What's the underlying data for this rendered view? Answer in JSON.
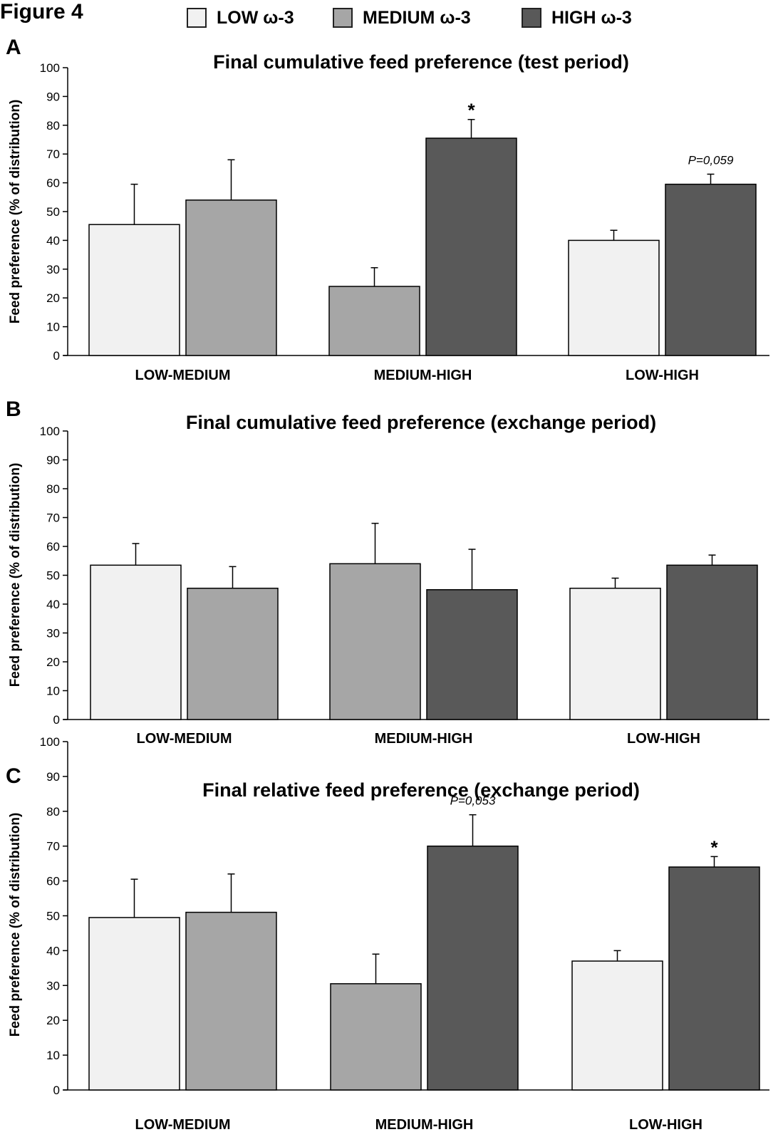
{
  "figure_label": "Figure 4",
  "legend": [
    {
      "label": "LOW ω-3",
      "color": "#f1f1f1"
    },
    {
      "label": "MEDIUM ω-3",
      "color": "#a6a6a6"
    },
    {
      "label": "HIGH ω-3",
      "color": "#595959"
    }
  ],
  "chart_data": [
    {
      "type": "bar",
      "panel": "A",
      "title": "Final cumulative feed preference (test period)",
      "ylabel": "Feed preference (% of distribution)",
      "ylim": [
        0,
        100
      ],
      "yticks": [
        0,
        10,
        20,
        30,
        40,
        50,
        60,
        70,
        80,
        90,
        100
      ],
      "groups": [
        {
          "category": "LOW-MEDIUM",
          "bars": [
            {
              "series": "LOW ω-3",
              "value": 45.5,
              "error": 14,
              "annotation": ""
            },
            {
              "series": "MEDIUM ω-3",
              "value": 54,
              "error": 14,
              "annotation": ""
            }
          ]
        },
        {
          "category": "MEDIUM-HIGH",
          "bars": [
            {
              "series": "MEDIUM ω-3",
              "value": 24,
              "error": 6.5,
              "annotation": ""
            },
            {
              "series": "HIGH ω-3",
              "value": 75.5,
              "error": 6.5,
              "annotation": "*"
            }
          ]
        },
        {
          "category": "LOW-HIGH",
          "bars": [
            {
              "series": "LOW ω-3",
              "value": 40,
              "error": 3.5,
              "annotation": ""
            },
            {
              "series": "HIGH ω-3",
              "value": 59.5,
              "error": 3.5,
              "annotation": "P=0,059"
            }
          ]
        }
      ]
    },
    {
      "type": "bar",
      "panel": "B",
      "title": "Final cumulative feed preference (exchange period)",
      "ylabel": "Feed preference (% of distribution)",
      "ylim": [
        0,
        100
      ],
      "yticks": [
        0,
        10,
        20,
        30,
        40,
        50,
        60,
        70,
        80,
        90,
        100
      ],
      "groups": [
        {
          "category": "LOW-MEDIUM",
          "bars": [
            {
              "series": "LOW ω-3",
              "value": 53.5,
              "error": 7.5,
              "annotation": ""
            },
            {
              "series": "MEDIUM ω-3",
              "value": 45.5,
              "error": 7.5,
              "annotation": ""
            }
          ]
        },
        {
          "category": "MEDIUM-HIGH",
          "bars": [
            {
              "series": "MEDIUM ω-3",
              "value": 54,
              "error": 14,
              "annotation": ""
            },
            {
              "series": "HIGH ω-3",
              "value": 45,
              "error": 14,
              "annotation": ""
            }
          ]
        },
        {
          "category": "LOW-HIGH",
          "bars": [
            {
              "series": "LOW ω-3",
              "value": 45.5,
              "error": 3.5,
              "annotation": ""
            },
            {
              "series": "HIGH ω-3",
              "value": 53.5,
              "error": 3.5,
              "annotation": ""
            }
          ]
        }
      ]
    },
    {
      "type": "bar",
      "panel": "C",
      "title": "Final relative feed preference (exchange period)",
      "ylabel": "Feed preference (% of distribution)",
      "ylim": [
        0,
        100
      ],
      "yticks": [
        0,
        10,
        20,
        30,
        40,
        50,
        60,
        70,
        80,
        90,
        100
      ],
      "groups": [
        {
          "category": "LOW-MEDIUM",
          "bars": [
            {
              "series": "LOW ω-3",
              "value": 49.5,
              "error": 11,
              "annotation": ""
            },
            {
              "series": "MEDIUM ω-3",
              "value": 51,
              "error": 11,
              "annotation": ""
            }
          ]
        },
        {
          "category": "MEDIUM-HIGH",
          "bars": [
            {
              "series": "MEDIUM ω-3",
              "value": 30.5,
              "error": 8.5,
              "annotation": ""
            },
            {
              "series": "HIGH ω-3",
              "value": 70,
              "error": 9,
              "annotation": "P=0,053"
            }
          ]
        },
        {
          "category": "LOW-HIGH",
          "bars": [
            {
              "series": "LOW ω-3",
              "value": 37,
              "error": 3,
              "annotation": ""
            },
            {
              "series": "HIGH ω-3",
              "value": 64,
              "error": 3,
              "annotation": "*"
            }
          ]
        }
      ]
    }
  ]
}
